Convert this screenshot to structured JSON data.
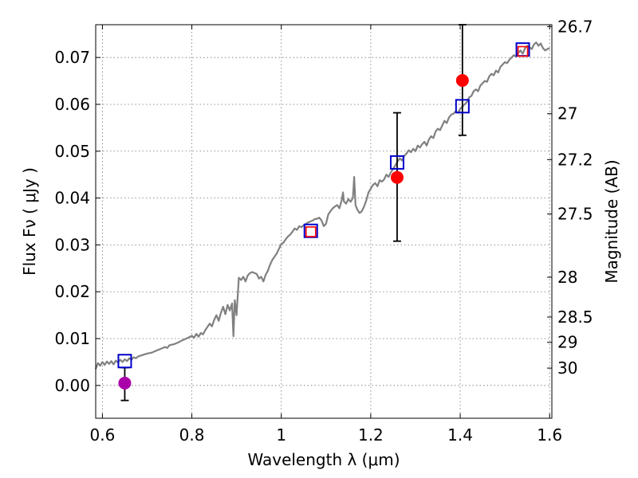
{
  "chart_data": {
    "type": "scatter",
    "xlabel": "Wavelength  λ (μm)",
    "ylabel": "Flux  Fν  ( μJy )",
    "ylabel_right": "Magnitude (AB)",
    "xlim": [
      0.585,
      1.605
    ],
    "ylim": [
      -0.007,
      0.077
    ],
    "grid": true,
    "x_ticks": [
      0.6,
      0.8,
      1.0,
      1.2,
      1.4,
      1.6
    ],
    "x_tick_labels": [
      "0.6",
      "0.8",
      "1",
      "1.2",
      "1.4",
      "1.6"
    ],
    "y_ticks": [
      0.0,
      0.01,
      0.02,
      0.03,
      0.04,
      0.05,
      0.06,
      0.07
    ],
    "y_tick_labels": [
      "0.00",
      "0.01",
      "0.02",
      "0.03",
      "0.04",
      "0.05",
      "0.06",
      "0.07"
    ],
    "right_ticks": [
      {
        "label": "26.7",
        "flux": 0.0766
      },
      {
        "label": "27",
        "flux": 0.058
      },
      {
        "label": "27.2",
        "flux": 0.0482
      },
      {
        "label": "27.5",
        "flux": 0.0366
      },
      {
        "label": "28",
        "flux": 0.0231
      },
      {
        "label": "28.5",
        "flux": 0.0146
      },
      {
        "label": "29",
        "flux": 0.0092
      },
      {
        "label": "30",
        "flux": 0.0037
      }
    ],
    "series": [
      {
        "role": "template spectrum",
        "style": "line",
        "color": "#808080",
        "points": [
          [
            0.585,
            0.0035
          ],
          [
            0.59,
            0.0048
          ],
          [
            0.595,
            0.0042
          ],
          [
            0.6,
            0.005
          ],
          [
            0.605,
            0.0044
          ],
          [
            0.61,
            0.0051
          ],
          [
            0.615,
            0.0046
          ],
          [
            0.62,
            0.0052
          ],
          [
            0.625,
            0.0045
          ],
          [
            0.63,
            0.0053
          ],
          [
            0.635,
            0.0049
          ],
          [
            0.64,
            0.0055
          ],
          [
            0.645,
            0.005
          ],
          [
            0.65,
            0.0056
          ],
          [
            0.655,
            0.0052
          ],
          [
            0.66,
            0.0058
          ],
          [
            0.665,
            0.0055
          ],
          [
            0.67,
            0.006
          ],
          [
            0.675,
            0.0058
          ],
          [
            0.68,
            0.0062
          ],
          [
            0.69,
            0.0065
          ],
          [
            0.7,
            0.0068
          ],
          [
            0.71,
            0.007
          ],
          [
            0.72,
            0.0074
          ],
          [
            0.73,
            0.0078
          ],
          [
            0.74,
            0.0082
          ],
          [
            0.745,
            0.008
          ],
          [
            0.75,
            0.0086
          ],
          [
            0.76,
            0.0088
          ],
          [
            0.77,
            0.0092
          ],
          [
            0.78,
            0.0097
          ],
          [
            0.79,
            0.0101
          ],
          [
            0.8,
            0.0106
          ],
          [
            0.805,
            0.0102
          ],
          [
            0.81,
            0.011
          ],
          [
            0.815,
            0.0104
          ],
          [
            0.82,
            0.0112
          ],
          [
            0.825,
            0.0109
          ],
          [
            0.83,
            0.0118
          ],
          [
            0.835,
            0.0125
          ],
          [
            0.84,
            0.0132
          ],
          [
            0.845,
            0.0126
          ],
          [
            0.85,
            0.014
          ],
          [
            0.855,
            0.015
          ],
          [
            0.86,
            0.0138
          ],
          [
            0.865,
            0.0155
          ],
          [
            0.87,
            0.0168
          ],
          [
            0.875,
            0.0152
          ],
          [
            0.88,
            0.0172
          ],
          [
            0.885,
            0.016
          ],
          [
            0.89,
            0.0175
          ],
          [
            0.893,
            0.0105
          ],
          [
            0.896,
            0.0182
          ],
          [
            0.9,
            0.015
          ],
          [
            0.905,
            0.023
          ],
          [
            0.91,
            0.0225
          ],
          [
            0.915,
            0.0232
          ],
          [
            0.92,
            0.0222
          ],
          [
            0.925,
            0.0235
          ],
          [
            0.93,
            0.024
          ],
          [
            0.935,
            0.0242
          ],
          [
            0.94,
            0.024
          ],
          [
            0.945,
            0.0238
          ],
          [
            0.95,
            0.0228
          ],
          [
            0.955,
            0.0232
          ],
          [
            0.96,
            0.0222
          ],
          [
            0.965,
            0.0236
          ],
          [
            0.97,
            0.0245
          ],
          [
            0.975,
            0.0258
          ],
          [
            0.98,
            0.0268
          ],
          [
            0.985,
            0.0275
          ],
          [
            0.99,
            0.0282
          ],
          [
            0.995,
            0.0292
          ],
          [
            1.0,
            0.0302
          ],
          [
            1.005,
            0.0305
          ],
          [
            1.01,
            0.0312
          ],
          [
            1.015,
            0.0318
          ],
          [
            1.02,
            0.0322
          ],
          [
            1.025,
            0.0328
          ],
          [
            1.03,
            0.0335
          ],
          [
            1.035,
            0.0332
          ],
          [
            1.04,
            0.034
          ],
          [
            1.045,
            0.0338
          ],
          [
            1.05,
            0.0342
          ],
          [
            1.055,
            0.0345
          ],
          [
            1.06,
            0.0348
          ],
          [
            1.065,
            0.035
          ],
          [
            1.07,
            0.0352
          ],
          [
            1.075,
            0.0355
          ],
          [
            1.08,
            0.0356
          ],
          [
            1.085,
            0.0358
          ],
          [
            1.09,
            0.0352
          ],
          [
            1.095,
            0.034
          ],
          [
            1.1,
            0.0345
          ],
          [
            1.105,
            0.0365
          ],
          [
            1.11,
            0.0372
          ],
          [
            1.115,
            0.0378
          ],
          [
            1.12,
            0.0382
          ],
          [
            1.125,
            0.0385
          ],
          [
            1.13,
            0.0378
          ],
          [
            1.135,
            0.0395
          ],
          [
            1.138,
            0.0412
          ],
          [
            1.14,
            0.0393
          ],
          [
            1.145,
            0.0388
          ],
          [
            1.15,
            0.0398
          ],
          [
            1.155,
            0.0392
          ],
          [
            1.16,
            0.04
          ],
          [
            1.163,
            0.0445
          ],
          [
            1.166,
            0.0385
          ],
          [
            1.17,
            0.0375
          ],
          [
            1.175,
            0.0368
          ],
          [
            1.18,
            0.0372
          ],
          [
            1.185,
            0.0382
          ],
          [
            1.19,
            0.0395
          ],
          [
            1.195,
            0.0412
          ],
          [
            1.2,
            0.042
          ],
          [
            1.205,
            0.0428
          ],
          [
            1.21,
            0.0432
          ],
          [
            1.215,
            0.0425
          ],
          [
            1.22,
            0.0438
          ],
          [
            1.225,
            0.0435
          ],
          [
            1.23,
            0.044
          ],
          [
            1.235,
            0.045
          ],
          [
            1.24,
            0.0445
          ],
          [
            1.245,
            0.0455
          ],
          [
            1.25,
            0.0462
          ],
          [
            1.255,
            0.047
          ],
          [
            1.26,
            0.0478
          ],
          [
            1.265,
            0.0485
          ],
          [
            1.27,
            0.048
          ],
          [
            1.275,
            0.049
          ],
          [
            1.28,
            0.0495
          ],
          [
            1.285,
            0.0502
          ],
          [
            1.29,
            0.0498
          ],
          [
            1.295,
            0.0505
          ],
          [
            1.3,
            0.05
          ],
          [
            1.305,
            0.0512
          ],
          [
            1.31,
            0.0508
          ],
          [
            1.315,
            0.0515
          ],
          [
            1.32,
            0.052
          ],
          [
            1.325,
            0.0512
          ],
          [
            1.33,
            0.0525
          ],
          [
            1.335,
            0.0532
          ],
          [
            1.34,
            0.0528
          ],
          [
            1.345,
            0.0542
          ],
          [
            1.35,
            0.0548
          ],
          [
            1.355,
            0.0545
          ],
          [
            1.36,
            0.0555
          ],
          [
            1.365,
            0.0565
          ],
          [
            1.37,
            0.056
          ],
          [
            1.375,
            0.0572
          ],
          [
            1.38,
            0.0578
          ],
          [
            1.385,
            0.058
          ],
          [
            1.39,
            0.0585
          ],
          [
            1.395,
            0.0582
          ],
          [
            1.4,
            0.059
          ],
          [
            1.405,
            0.0595
          ],
          [
            1.41,
            0.06
          ],
          [
            1.415,
            0.0605
          ],
          [
            1.42,
            0.0615
          ],
          [
            1.425,
            0.0618
          ],
          [
            1.43,
            0.0628
          ],
          [
            1.435,
            0.0632
          ],
          [
            1.44,
            0.0628
          ],
          [
            1.445,
            0.064
          ],
          [
            1.45,
            0.0645
          ],
          [
            1.455,
            0.065
          ],
          [
            1.46,
            0.0648
          ],
          [
            1.465,
            0.066
          ],
          [
            1.47,
            0.0665
          ],
          [
            1.475,
            0.0662
          ],
          [
            1.48,
            0.0672
          ],
          [
            1.485,
            0.0668
          ],
          [
            1.49,
            0.068
          ],
          [
            1.495,
            0.0685
          ],
          [
            1.5,
            0.069
          ],
          [
            1.505,
            0.0688
          ],
          [
            1.51,
            0.0695
          ],
          [
            1.515,
            0.07
          ],
          [
            1.52,
            0.0705
          ],
          [
            1.525,
            0.0702
          ],
          [
            1.53,
            0.071
          ],
          [
            1.535,
            0.0715
          ],
          [
            1.54,
            0.0708
          ],
          [
            1.545,
            0.072
          ],
          [
            1.55,
            0.0725
          ],
          [
            1.555,
            0.0722
          ],
          [
            1.56,
            0.0718
          ],
          [
            1.565,
            0.0728
          ],
          [
            1.57,
            0.0732
          ],
          [
            1.575,
            0.0725
          ],
          [
            1.58,
            0.073
          ],
          [
            1.585,
            0.072
          ],
          [
            1.59,
            0.0715
          ],
          [
            1.595,
            0.0718
          ],
          [
            1.6,
            0.072
          ]
        ]
      },
      {
        "role": "model band fluxes",
        "style": "open-square",
        "color": "#0000cc",
        "points": [
          [
            0.65,
            0.0052
          ],
          [
            1.066,
            0.033
          ],
          [
            1.259,
            0.0476
          ],
          [
            1.405,
            0.0596
          ],
          [
            1.54,
            0.0717
          ]
        ]
      },
      {
        "role": "observed (red) inner squares",
        "style": "open-square-small",
        "color": "#ff0000",
        "points": [
          [
            1.066,
            0.0328
          ],
          [
            1.54,
            0.0713
          ]
        ]
      },
      {
        "role": "observed detections",
        "style": "dot-errorbar",
        "color": "#ff0000",
        "points": [
          {
            "x": 1.259,
            "y": 0.0444,
            "lo": 0.0308,
            "hi": 0.0582
          },
          {
            "x": 1.405,
            "y": 0.0651,
            "lo": 0.0534,
            "hi": 0.077
          }
        ]
      },
      {
        "role": "observed non-detection",
        "style": "dot-errorbar",
        "color": "#aa00aa",
        "points": [
          {
            "x": 0.65,
            "y": 0.0005,
            "lo": -0.0032,
            "hi": 0.0038
          }
        ]
      }
    ]
  }
}
